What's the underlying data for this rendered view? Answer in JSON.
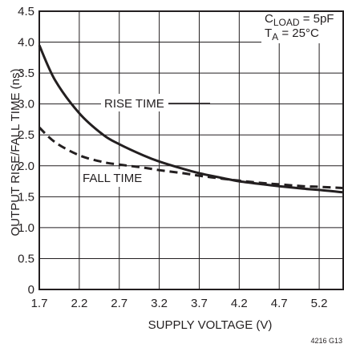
{
  "chart_data": {
    "type": "line",
    "xlabel": "SUPPLY VOLTAGE (V)",
    "ylabel": "OUTPUT RISE/FALL TIME (ns)",
    "xlim": [
      1.7,
      5.5
    ],
    "ylim": [
      0,
      4.5
    ],
    "x_ticks": [
      "1.7",
      "2.2",
      "2.7",
      "3.2",
      "3.7",
      "4.2",
      "4.7",
      "5.2"
    ],
    "y_ticks": [
      "0",
      "0.5",
      "1.0",
      "1.5",
      "2.0",
      "2.5",
      "3.0",
      "3.5",
      "4.0",
      "4.5"
    ],
    "grid": true,
    "conditions": {
      "load_main": "C",
      "load_sub": "LOAD",
      "load_value": " = 5pF",
      "temp_main": "T",
      "temp_sub": "A",
      "temp_value": " = 25°C"
    },
    "figure_id": "4216 G13",
    "series": [
      {
        "name": "RISE TIME",
        "style": "solid",
        "x": [
          1.7,
          1.9,
          2.2,
          2.5,
          2.7,
          3.0,
          3.2,
          3.5,
          3.7,
          4.0,
          4.2,
          4.5,
          4.7,
          5.0,
          5.2,
          5.5
        ],
        "y": [
          3.95,
          3.38,
          2.85,
          2.5,
          2.35,
          2.17,
          2.07,
          1.95,
          1.88,
          1.8,
          1.75,
          1.7,
          1.67,
          1.63,
          1.61,
          1.57
        ]
      },
      {
        "name": "FALL TIME",
        "style": "dashed",
        "x": [
          1.7,
          1.9,
          2.2,
          2.5,
          2.7,
          3.0,
          3.2,
          3.5,
          3.7,
          4.0,
          4.2,
          4.5,
          4.7,
          5.0,
          5.2,
          5.5
        ],
        "y": [
          2.62,
          2.38,
          2.17,
          2.06,
          2.02,
          1.97,
          1.93,
          1.88,
          1.84,
          1.79,
          1.76,
          1.72,
          1.7,
          1.67,
          1.66,
          1.64
        ]
      }
    ]
  }
}
